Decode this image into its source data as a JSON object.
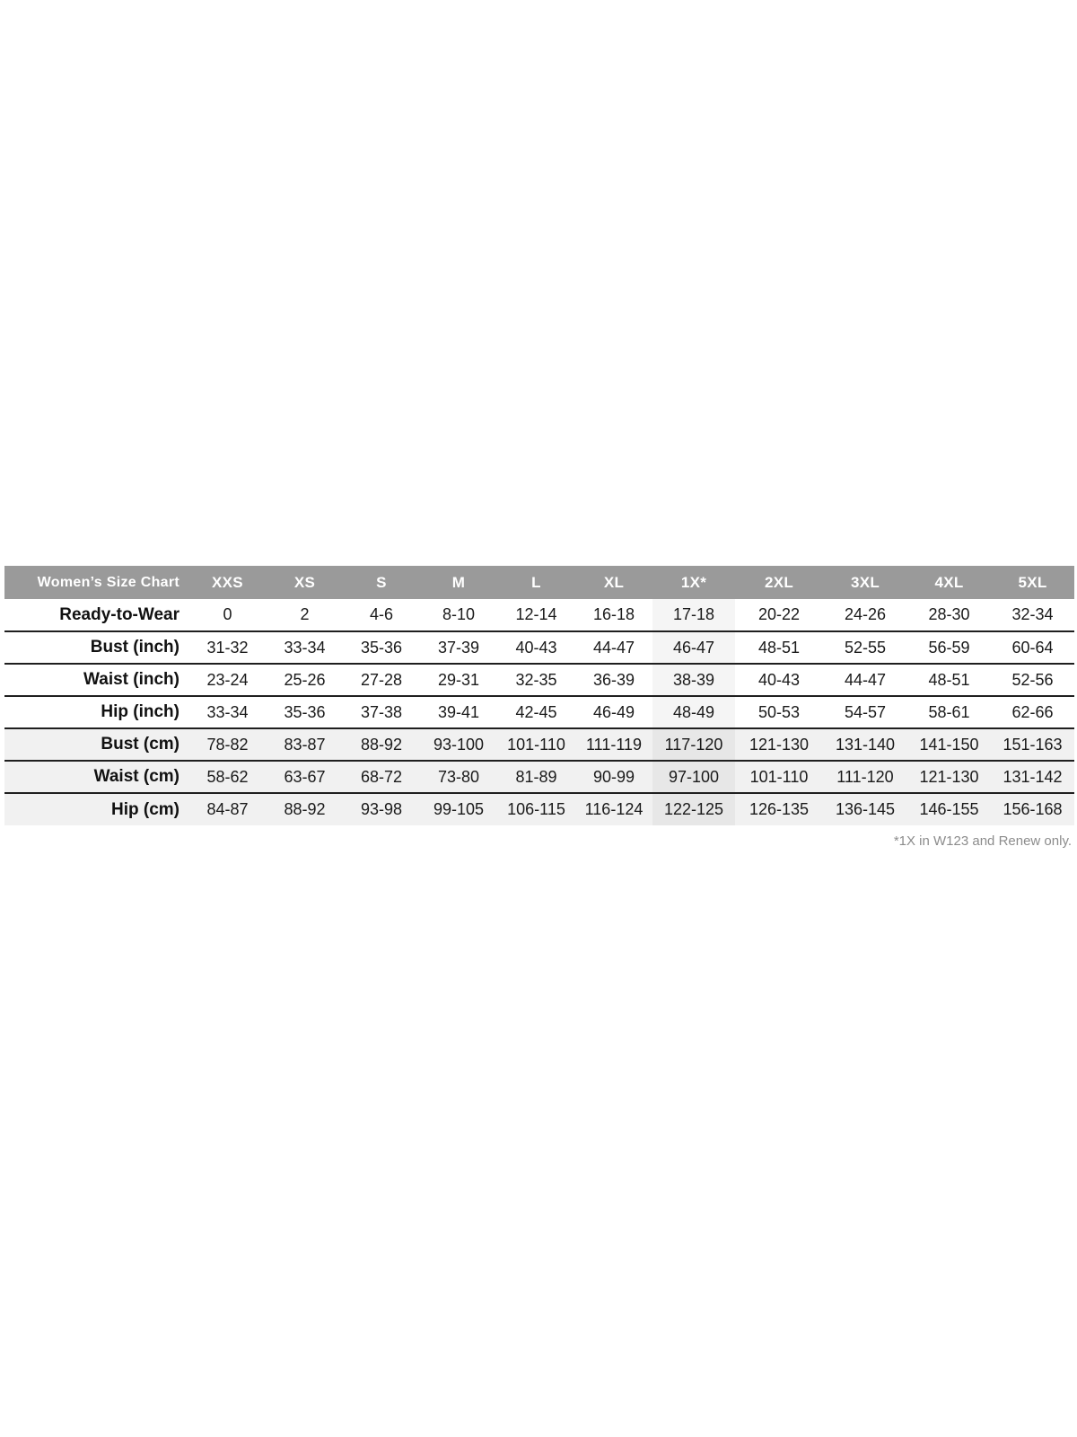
{
  "chart_data": {
    "type": "table",
    "title": "Women’s Size Chart",
    "columns": [
      "XXS",
      "XS",
      "S",
      "M",
      "L",
      "XL",
      "1X*",
      "2XL",
      "3XL",
      "4XL",
      "5XL"
    ],
    "highlight_column": "1X*",
    "rows": [
      {
        "label": "Ready-to-Wear",
        "shaded": false,
        "values": [
          "0",
          "2",
          "4-6",
          "8-10",
          "12-14",
          "16-18",
          "17-18",
          "20-22",
          "24-26",
          "28-30",
          "32-34"
        ]
      },
      {
        "label": "Bust (inch)",
        "shaded": false,
        "values": [
          "31-32",
          "33-34",
          "35-36",
          "37-39",
          "40-43",
          "44-47",
          "46-47",
          "48-51",
          "52-55",
          "56-59",
          "60-64"
        ]
      },
      {
        "label": "Waist (inch)",
        "shaded": false,
        "values": [
          "23-24",
          "25-26",
          "27-28",
          "29-31",
          "32-35",
          "36-39",
          "38-39",
          "40-43",
          "44-47",
          "48-51",
          "52-56"
        ]
      },
      {
        "label": "Hip (inch)",
        "shaded": false,
        "values": [
          "33-34",
          "35-36",
          "37-38",
          "39-41",
          "42-45",
          "46-49",
          "48-49",
          "50-53",
          "54-57",
          "58-61",
          "62-66"
        ]
      },
      {
        "label": "Bust (cm)",
        "shaded": true,
        "values": [
          "78-82",
          "83-87",
          "88-92",
          "93-100",
          "101-110",
          "111-119",
          "117-120",
          "121-130",
          "131-140",
          "141-150",
          "151-163"
        ]
      },
      {
        "label": "Waist (cm)",
        "shaded": true,
        "values": [
          "58-62",
          "63-67",
          "68-72",
          "73-80",
          "81-89",
          "90-99",
          "97-100",
          "101-110",
          "111-120",
          "121-130",
          "131-142"
        ]
      },
      {
        "label": "Hip (cm)",
        "shaded": true,
        "values": [
          "84-87",
          "88-92",
          "93-98",
          "99-105",
          "106-115",
          "116-124",
          "122-125",
          "126-135",
          "136-145",
          "146-155",
          "156-168"
        ]
      }
    ],
    "footnote": "*1X in W123 and Renew only."
  },
  "colors": {
    "header_bg": "#9a9a9a",
    "header_text": "#ffffff",
    "shaded_row_bg": "#f1f1f1",
    "highlight_col_bg": "#f5f5f5",
    "highlight_col_on_shaded_bg": "#e7e7e7",
    "row_border": "#1f1f1f",
    "body_text": "#1a1a1a",
    "footnote_text": "#8c8c8c"
  }
}
